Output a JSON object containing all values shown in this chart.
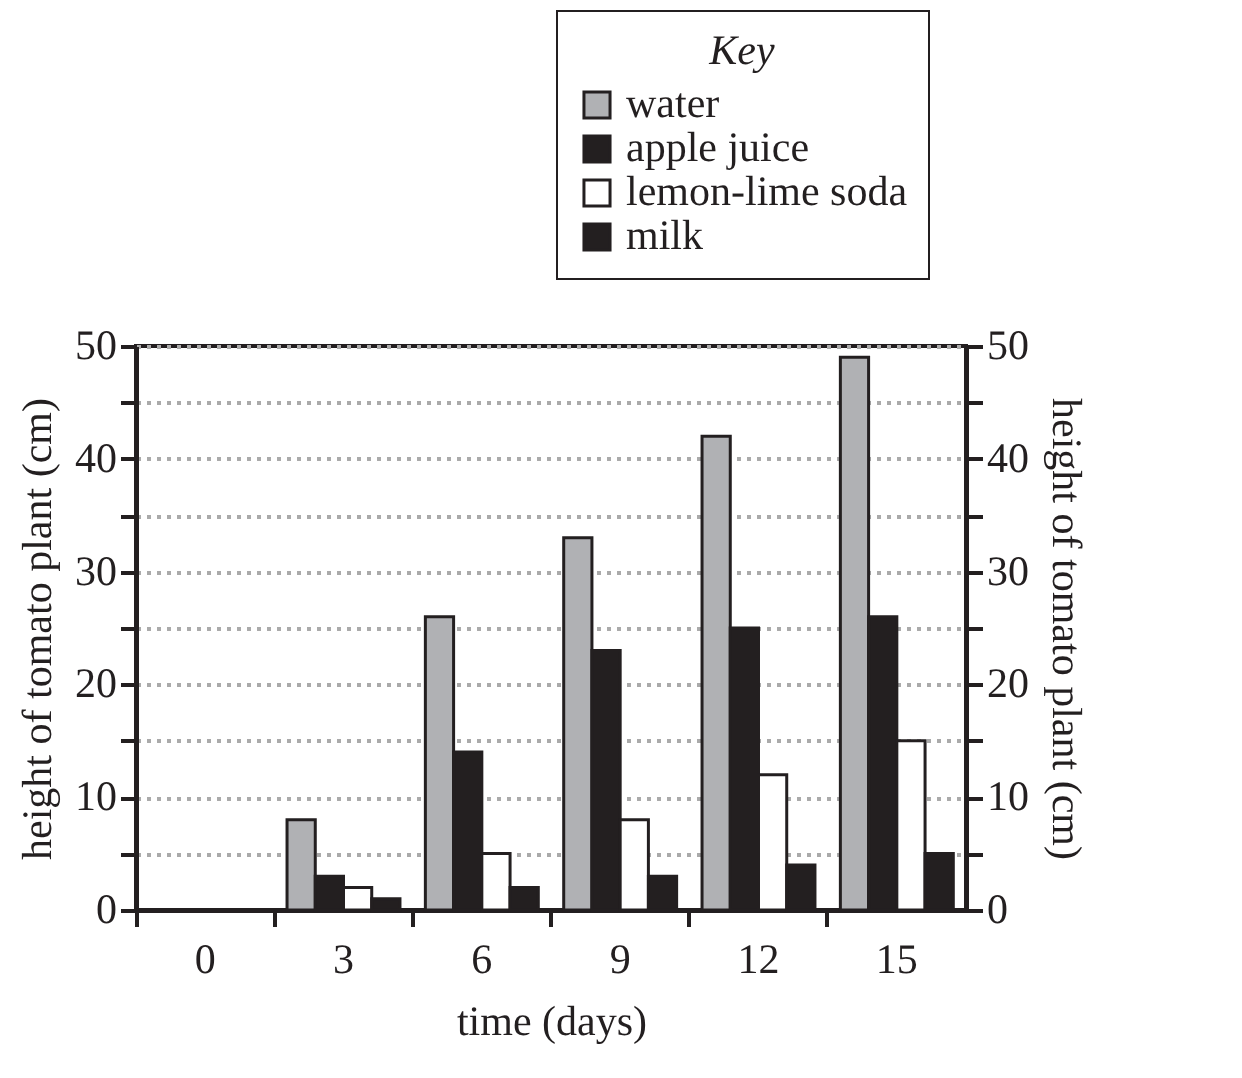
{
  "chart_data": {
    "type": "bar",
    "xlabel": "time (days)",
    "ylabel": "height of tomato plant (cm)",
    "y2label": "height of tomato plant (cm)",
    "legend_title": "Key",
    "legend": "top right",
    "categories": [
      "0",
      "3",
      "6",
      "9",
      "12",
      "15"
    ],
    "series": [
      {
        "name": "water",
        "color": "#b0b1b4",
        "values": [
          0,
          8,
          26,
          33,
          42,
          49
        ]
      },
      {
        "name": "apple juice",
        "color": "#231f20",
        "values": [
          0,
          3,
          14,
          23,
          25,
          26
        ]
      },
      {
        "name": "lemon-lime soda",
        "color": "#ffffff",
        "values": [
          0,
          2,
          5,
          8,
          12,
          15
        ]
      },
      {
        "name": "milk",
        "color": "#231f20",
        "values": [
          0,
          1,
          2,
          3,
          4,
          5
        ]
      }
    ],
    "ylim": [
      0,
      50
    ],
    "yticks": [
      0,
      {
        "value": 5,
        "label": null
      },
      10,
      {
        "value": 15,
        "label": null
      },
      20,
      {
        "value": 25,
        "label": null
      },
      30,
      {
        "value": 35,
        "label": null
      },
      40,
      {
        "value": 45,
        "label": null
      },
      50
    ],
    "y2lim": [
      0,
      50
    ],
    "y2ticks": [
      0,
      {
        "value": 5,
        "label": null
      },
      10,
      {
        "value": 15,
        "label": null
      },
      20,
      {
        "value": 25,
        "label": null
      },
      30,
      {
        "value": 35,
        "label": null
      },
      40,
      {
        "value": 45,
        "label": null
      },
      50
    ],
    "grid": true
  }
}
